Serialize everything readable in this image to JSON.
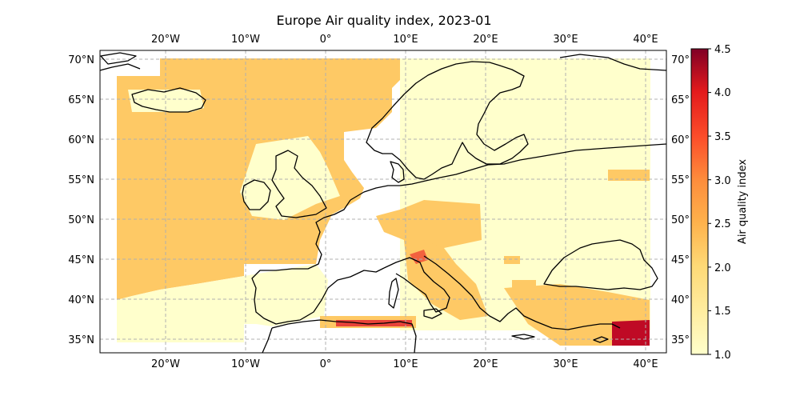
{
  "title": "Europe Air quality index, 2023-01",
  "chart_data": {
    "type": "heatmap",
    "title": "Europe Air quality index, 2023-01",
    "lon_range": [
      -28,
      43
    ],
    "lat_range": [
      33,
      71
    ],
    "x_ticks": [
      "20°W",
      "10°W",
      "0°",
      "10°E",
      "20°E",
      "30°E",
      "40°E"
    ],
    "y_ticks_left": [
      "35°N",
      "40°N",
      "45°N",
      "50°N",
      "55°N",
      "60°N",
      "65°N",
      "70°N"
    ],
    "y_ticks_right": [
      "35°",
      "40°",
      "45°",
      "50°",
      "55°",
      "60°",
      "65°",
      "70°"
    ],
    "grid": true,
    "colorbar": {
      "label": "Air quality index",
      "min": 1.0,
      "max": 4.5,
      "ticks": [
        "1.0",
        "1.5",
        "2.0",
        "2.5",
        "3.0",
        "3.5",
        "4.0",
        "4.5"
      ],
      "colormap": "YlOrRd"
    },
    "colors": {
      "level_1": "#ffffcc",
      "level_2": "#fec965",
      "level_3": "#f2623f",
      "level_4": "#bf0a25"
    }
  }
}
